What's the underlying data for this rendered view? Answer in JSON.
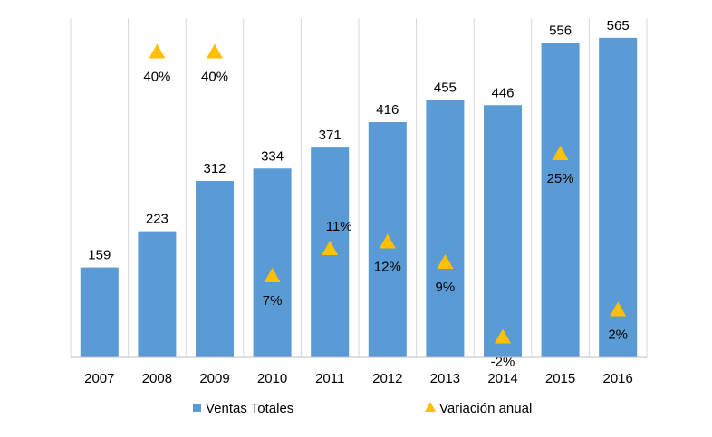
{
  "chart_data": {
    "type": "bar",
    "title": "",
    "categories": [
      "2007",
      "2008",
      "2009",
      "2010",
      "2011",
      "2012",
      "2013",
      "2014",
      "2015",
      "2016"
    ],
    "series": [
      {
        "name": "Ventas Totales",
        "type": "bar",
        "values": [
          159,
          223,
          312,
          334,
          371,
          416,
          455,
          446,
          556,
          565
        ],
        "labels": [
          "159",
          "223",
          "312",
          "334",
          "371",
          "416",
          "455",
          "446",
          "556",
          "565"
        ],
        "color": "#5B9BD5"
      },
      {
        "name": "Variación anual",
        "type": "marker",
        "marker": "triangle",
        "values": [
          null,
          40,
          40,
          7,
          11,
          12,
          9,
          -2,
          25,
          2
        ],
        "labels": [
          "",
          "40%",
          "40%",
          "7%",
          "11%",
          "12%",
          "9%",
          "-2%",
          "25%",
          "2%"
        ],
        "color": "#FFC000",
        "axis": "secondary"
      }
    ],
    "ylim": [
      0,
      600
    ],
    "y2lim": [
      -5,
      45
    ],
    "grid": "vertical",
    "legend": "bottom"
  }
}
